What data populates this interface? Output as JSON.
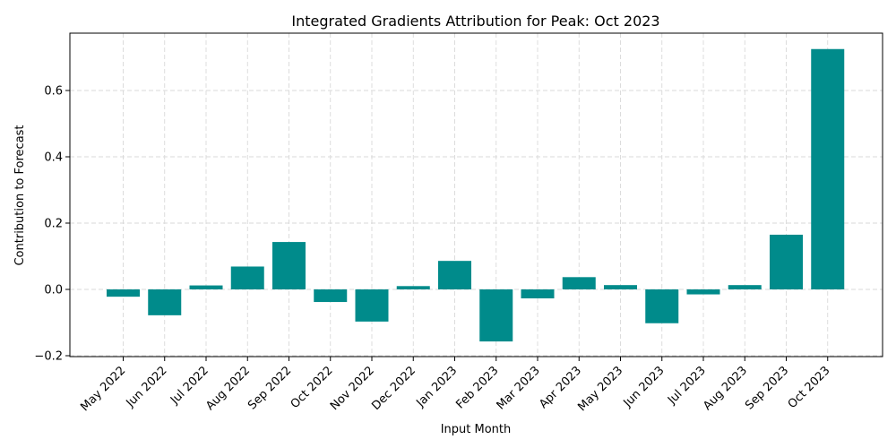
{
  "chart_data": {
    "type": "bar",
    "title": "Integrated Gradients Attribution for Peak: Oct 2023",
    "xlabel": "Input Month",
    "ylabel": "Contribution to Forecast",
    "categories": [
      "May 2022",
      "Jun 2022",
      "Jul 2022",
      "Aug 2022",
      "Sep 2022",
      "Oct 2022",
      "Nov 2022",
      "Dec 2022",
      "Jan 2023",
      "Feb 2023",
      "Mar 2023",
      "Apr 2023",
      "May 2023",
      "Jun 2023",
      "Jul 2023",
      "Aug 2023",
      "Sep 2023",
      "Oct 2023"
    ],
    "values": [
      -0.022,
      -0.078,
      0.012,
      0.069,
      0.143,
      -0.038,
      -0.097,
      0.01,
      0.086,
      -0.157,
      -0.027,
      0.037,
      0.013,
      -0.102,
      -0.015,
      0.013,
      0.165,
      0.725
    ],
    "ylim": [
      -0.2,
      0.77
    ],
    "yticks": [
      -0.2,
      0.0,
      0.2,
      0.4,
      0.6
    ],
    "ytick_labels": [
      "−0.2",
      "0.0",
      "0.2",
      "0.4",
      "0.6"
    ],
    "grid": true,
    "bar_color": "#008b8b"
  }
}
